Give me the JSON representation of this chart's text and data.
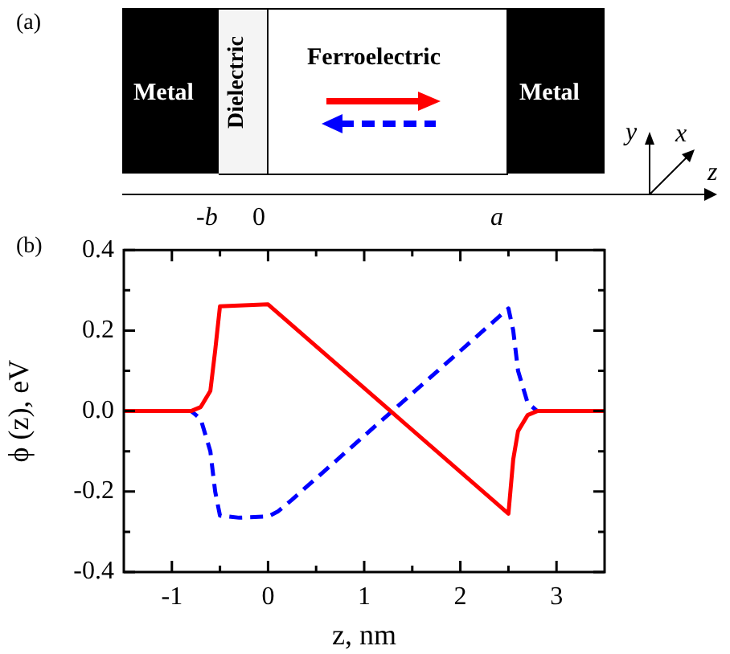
{
  "chart_data": {
    "type": "line",
    "xlabel": "z, nm",
    "ylabel": "ϕ (z), eV",
    "xlim": [
      -1.5,
      3.5
    ],
    "ylim": [
      -0.4,
      0.4
    ],
    "xticks": [
      {
        "value": -1,
        "label": "-1"
      },
      {
        "value": -0.5,
        "label": null
      },
      0,
      {
        "value": 0.5,
        "label": null
      },
      1,
      {
        "value": 1.5,
        "label": null
      },
      2,
      {
        "value": 2.5,
        "label": null
      },
      3
    ],
    "yticks": [
      {
        "value": -0.4,
        "label": "-0.4"
      },
      {
        "value": -0.3,
        "label": null
      },
      {
        "value": -0.2,
        "label": "-0.2"
      },
      {
        "value": -0.1,
        "label": null
      },
      {
        "value": 0,
        "label": "0.0"
      },
      {
        "value": 0.1,
        "label": null
      },
      0.2,
      {
        "value": 0.3,
        "label": null
      },
      0.4
    ],
    "grid": false,
    "legend": false,
    "marker": "none",
    "annotations": [
      "(a)",
      "Metal",
      "Dielectric",
      "Ferroelectric",
      "Metal",
      "y",
      "x",
      "z",
      "-b",
      "0",
      "a",
      "(b)"
    ],
    "series": [
      {
        "color": "#ff0000",
        "line_style": "solid",
        "x": [
          -1.5,
          -0.8,
          -0.7,
          -0.6,
          -0.55,
          -0.5,
          0,
          2.5,
          2.55,
          2.6,
          2.7,
          2.8,
          3.5
        ],
        "values": [
          0,
          0,
          0.01,
          0.05,
          0.15,
          0.26,
          0.265,
          -0.255,
          -0.12,
          -0.05,
          -0.01,
          0,
          0
        ]
      },
      {
        "color": "#0000ff",
        "line_style": "dashed",
        "x": [
          -1.5,
          -0.8,
          -0.7,
          -0.6,
          -0.55,
          -0.5,
          -0.3,
          0,
          0.1,
          0.25,
          2.5,
          2.55,
          2.6,
          2.7,
          2.8,
          3.5
        ],
        "values": [
          0,
          0,
          -0.02,
          -0.1,
          -0.2,
          -0.26,
          -0.265,
          -0.262,
          -0.25,
          -0.22,
          0.255,
          0.2,
          0.1,
          0.02,
          0,
          0
        ]
      }
    ]
  }
}
